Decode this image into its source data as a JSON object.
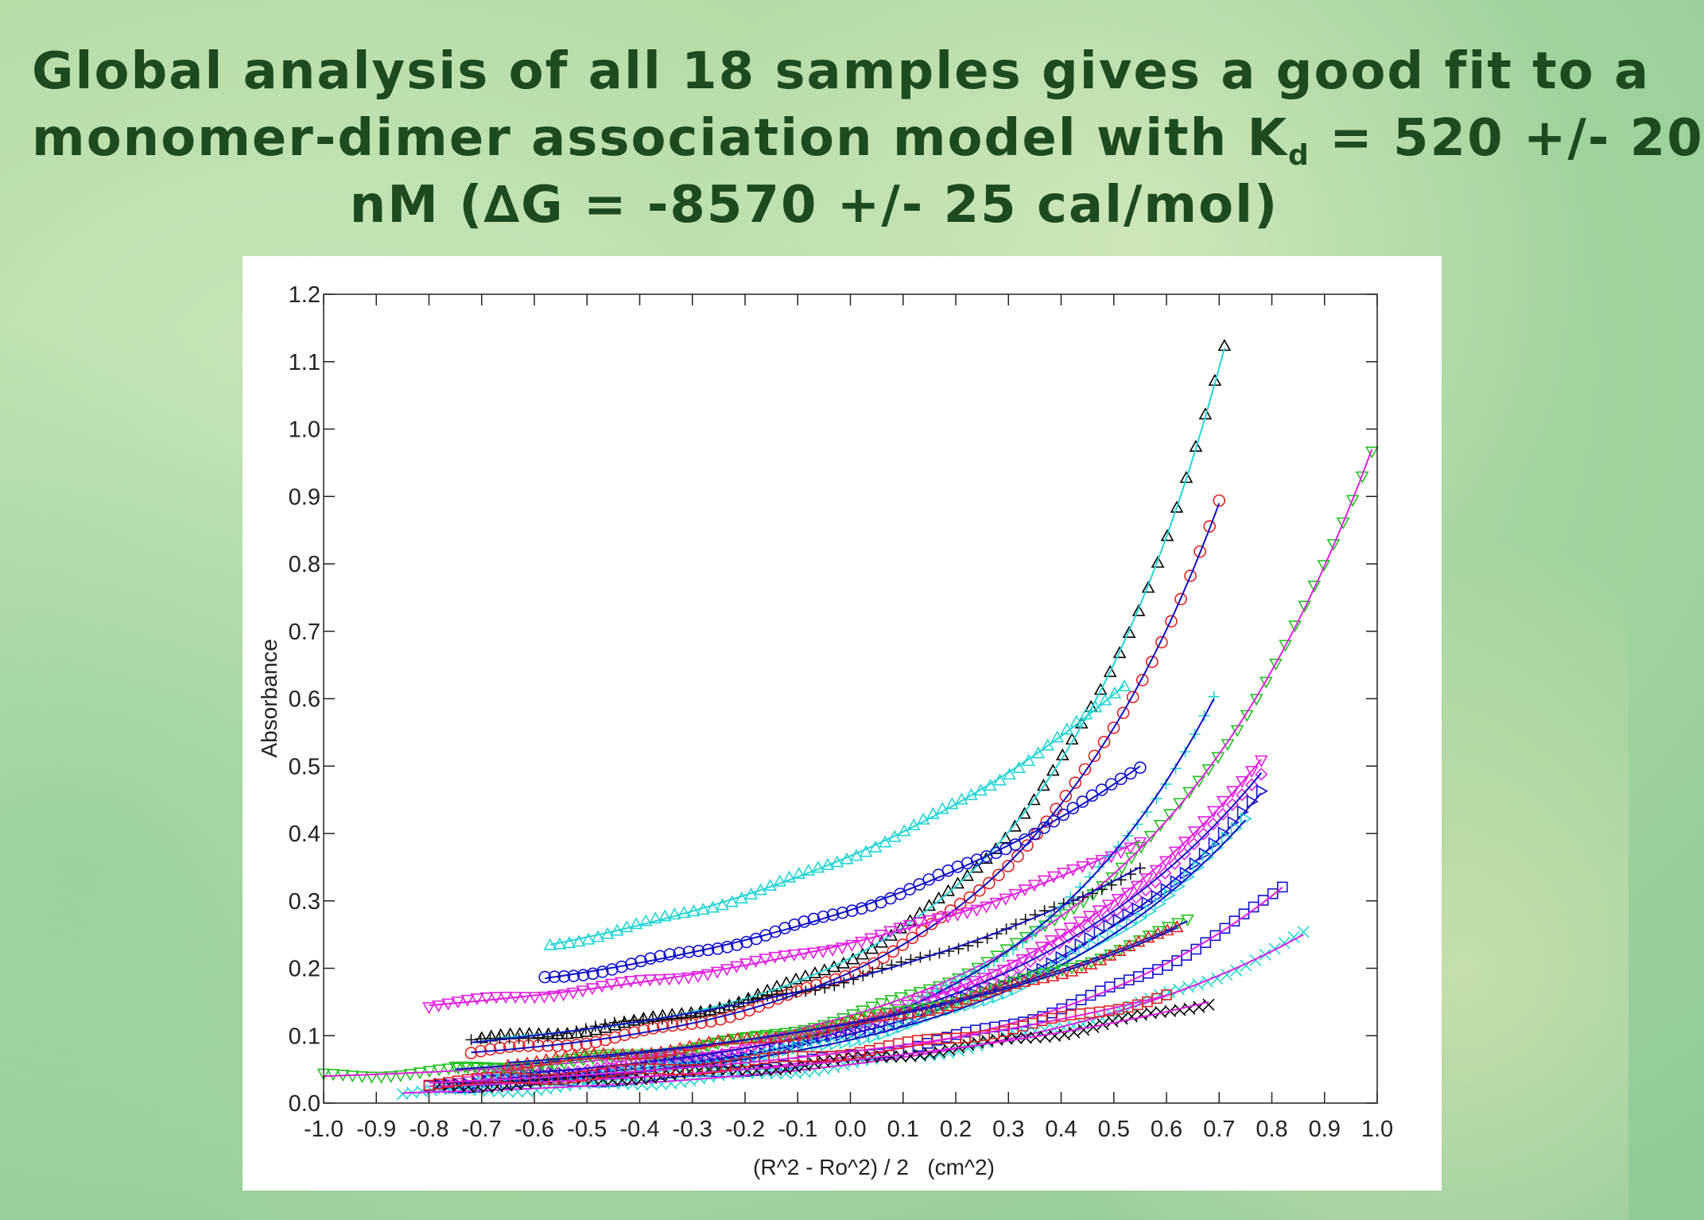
{
  "slide": {
    "title_line1": "Global analysis of all 18 samples gives a good fit to a",
    "title_line2_a": "monomer-dimer association model with K",
    "title_line2_sub": "d",
    "title_line2_b": " = 520 +/- 20",
    "title_line3": "nM (∆G = -8570 +/- 25 cal/mol)"
  },
  "chart_data": {
    "type": "scatter",
    "xlabel": "(R^2 - Ro^2) / 2   (cm^2)",
    "ylabel": "Absorbance",
    "xlim": [
      -1.0,
      1.0
    ],
    "ylim": [
      0.0,
      1.2
    ],
    "xticks": [
      "-1.0",
      "-0.9",
      "-0.8",
      "-0.7",
      "-0.6",
      "-0.5",
      "-0.4",
      "-0.3",
      "-0.2",
      "-0.1",
      "0.0",
      "0.1",
      "0.2",
      "0.3",
      "0.4",
      "0.5",
      "0.6",
      "0.7",
      "0.8",
      "0.9",
      "1.0"
    ],
    "yticks": [
      "0.0",
      "0.1",
      "0.2",
      "0.3",
      "0.4",
      "0.5",
      "0.6",
      "0.7",
      "0.8",
      "0.9",
      "1.0",
      "1.1",
      "1.2"
    ],
    "grid": false,
    "fit_lines": true,
    "series": [
      {
        "marker": "triangle-up",
        "color": "#000000",
        "fit_color": "#22d4d4",
        "x0": -0.7,
        "x1": 0.71,
        "y0": 0.095,
        "y1": 1.12,
        "k": 4.0
      },
      {
        "marker": "triangle-up",
        "color": "#22d4d4",
        "fit_color": "#22d4d4",
        "x0": -0.57,
        "x1": 0.52,
        "y0": 0.235,
        "y1": 0.62,
        "k": 1.5
      },
      {
        "marker": "circle",
        "color": "#e02020",
        "fit_color": "#1010c0",
        "x0": -0.72,
        "x1": 0.7,
        "y0": 0.075,
        "y1": 0.89,
        "k": 3.6
      },
      {
        "marker": "circle",
        "color": "#1010d0",
        "fit_color": "#1010c0",
        "x0": -0.58,
        "x1": 0.55,
        "y0": 0.185,
        "y1": 0.5,
        "k": 1.6
      },
      {
        "marker": "triangle-down",
        "color": "#e020e0",
        "fit_color": "#e020e0",
        "x0": -0.8,
        "x1": 0.55,
        "y0": 0.145,
        "y1": 0.39,
        "k": 1.8
      },
      {
        "marker": "triangle-down",
        "color": "#22c020",
        "fit_color": "#e020e0",
        "x0": -1.0,
        "x1": 0.99,
        "y0": 0.04,
        "y1": 0.97,
        "k": 4.5
      },
      {
        "marker": "triangle-down",
        "color": "#e020e0",
        "fit_color": "#e020e0",
        "x0": -0.78,
        "x1": 0.78,
        "y0": 0.03,
        "y1": 0.51,
        "k": 3.0
      },
      {
        "marker": "plus",
        "color": "#101010",
        "fit_color": "#1010c0",
        "x0": -0.72,
        "x1": 0.55,
        "y0": 0.09,
        "y1": 0.35,
        "k": 1.7
      },
      {
        "marker": "plus",
        "color": "#22d4d4",
        "fit_color": "#1010c0",
        "x0": -0.78,
        "x1": 0.69,
        "y0": 0.025,
        "y1": 0.6,
        "k": 3.8
      },
      {
        "marker": "diamond",
        "color": "#e020e0",
        "fit_color": "#1010c0",
        "x0": -0.7,
        "x1": 0.78,
        "y0": 0.04,
        "y1": 0.49,
        "k": 3.0
      },
      {
        "marker": "triangle-right",
        "color": "#1010d0",
        "fit_color": "#1010c0",
        "x0": -0.78,
        "x1": 0.78,
        "y0": 0.03,
        "y1": 0.46,
        "k": 3.2
      },
      {
        "marker": "triangle-right",
        "color": "#22d4d4",
        "fit_color": "#1010c0",
        "x0": -0.7,
        "x1": 0.75,
        "y0": 0.03,
        "y1": 0.42,
        "k": 3.1
      },
      {
        "marker": "square",
        "color": "#1010d0",
        "fit_color": "#e020e0",
        "x0": -0.8,
        "x1": 0.82,
        "y0": 0.025,
        "y1": 0.32,
        "k": 3.4
      },
      {
        "marker": "x",
        "color": "#22d4d4",
        "fit_color": "#e020e0",
        "x0": -0.85,
        "x1": 0.86,
        "y0": 0.015,
        "y1": 0.25,
        "k": 3.0
      },
      {
        "marker": "x",
        "color": "#000000",
        "fit_color": "#e020e0",
        "x0": -0.78,
        "x1": 0.68,
        "y0": 0.025,
        "y1": 0.15,
        "k": 1.9
      },
      {
        "marker": "square",
        "color": "#e02020",
        "fit_color": "#e020e0",
        "x0": -0.8,
        "x1": 0.6,
        "y0": 0.03,
        "y1": 0.16,
        "k": 1.8
      },
      {
        "marker": "triangle-down",
        "color": "#22c020",
        "fit_color": "#1010c0",
        "x0": -0.75,
        "x1": 0.64,
        "y0": 0.05,
        "y1": 0.27,
        "k": 1.9
      },
      {
        "marker": "triangle-up",
        "color": "#e02020",
        "fit_color": "#1010c0",
        "x0": -0.65,
        "x1": 0.62,
        "y0": 0.06,
        "y1": 0.26,
        "k": 1.9
      }
    ]
  }
}
